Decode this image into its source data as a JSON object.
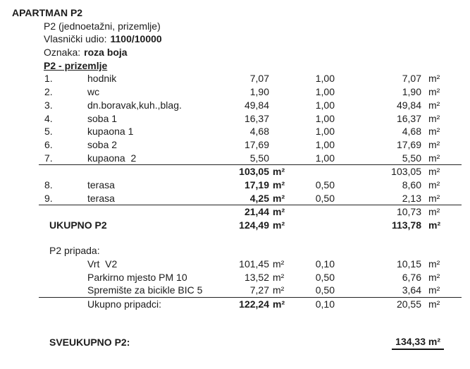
{
  "document": {
    "title": "APARTMAN P2",
    "subtitle": "P2 (jednoetažni, prizemlje)",
    "ownership": {
      "label": "Vlasnički udio:",
      "value": "1100/10000"
    },
    "mark": {
      "label": "Oznaka:",
      "value": "roza boja"
    },
    "section_heading": "P2 - prizemlje"
  },
  "rooms": [
    {
      "num": "1.",
      "name": "hodnik",
      "area": "7,07",
      "factor": "1,00",
      "result": "7,07",
      "unit": "m²"
    },
    {
      "num": "2.",
      "name": "wc",
      "area": "1,90",
      "factor": "1,00",
      "result": "1,90",
      "unit": "m²"
    },
    {
      "num": "3.",
      "name": "dn.boravak,kuh.,blag.",
      "area": "49,84",
      "factor": "1,00",
      "result": "49,84",
      "unit": "m²"
    },
    {
      "num": "4.",
      "name": "soba 1",
      "area": "16,37",
      "factor": "1,00",
      "result": "16,37",
      "unit": "m²"
    },
    {
      "num": "5.",
      "name": "kupaona 1",
      "area": "4,68",
      "factor": "1,00",
      "result": "4,68",
      "unit": "m²"
    },
    {
      "num": "6.",
      "name": "soba 2",
      "area": "17,69",
      "factor": "1,00",
      "result": "17,69",
      "unit": "m²"
    },
    {
      "num": "7.",
      "name": "kupaona  2",
      "area": "5,50",
      "factor": "1,00",
      "result": "5,50",
      "unit": "m²"
    }
  ],
  "interior_subtotal": {
    "area": "103,05",
    "area_unit": "m²",
    "result": "103,05",
    "unit": "m²"
  },
  "terraces": [
    {
      "num": "8.",
      "name": "terasa",
      "area": "17,19",
      "area_unit": "m²",
      "factor": "0,50",
      "result": "8,60",
      "unit": "m²"
    },
    {
      "num": "9.",
      "name": "terasa",
      "area": "4,25",
      "area_unit": "m²",
      "factor": "0,50",
      "result": "2,13",
      "unit": "m²"
    }
  ],
  "terrace_subtotal": {
    "area": "21,44",
    "area_unit": "m²",
    "result": "10,73",
    "unit": "m²"
  },
  "total": {
    "label": "UKUPNO P2",
    "area": "124,49",
    "area_unit": "m²",
    "result": "113,78",
    "unit": "m²"
  },
  "appurtenances": {
    "heading": "P2 pripada:",
    "items": [
      {
        "name": "Vrt  V2",
        "area": "101,45",
        "area_unit": "m²",
        "factor": "0,10",
        "result": "10,15",
        "unit": "m²"
      },
      {
        "name": "Parkirno mjesto PM 10",
        "area": "13,52",
        "area_unit": "m²",
        "factor": "0,50",
        "result": "6,76",
        "unit": "m²"
      },
      {
        "name": "Spremište za bicikle BIC 5",
        "area": "7,27",
        "area_unit": "m²",
        "factor": "0,50",
        "result": "3,64",
        "unit": "m²"
      }
    ],
    "total": {
      "label": "Ukupno pripadci:",
      "area": "122,24",
      "area_unit": "m²",
      "factor": "0,10",
      "result": "20,55",
      "unit": "m²"
    }
  },
  "grand_total": {
    "label": "SVEUKUPNO P2:",
    "value": "134,33 m²"
  }
}
